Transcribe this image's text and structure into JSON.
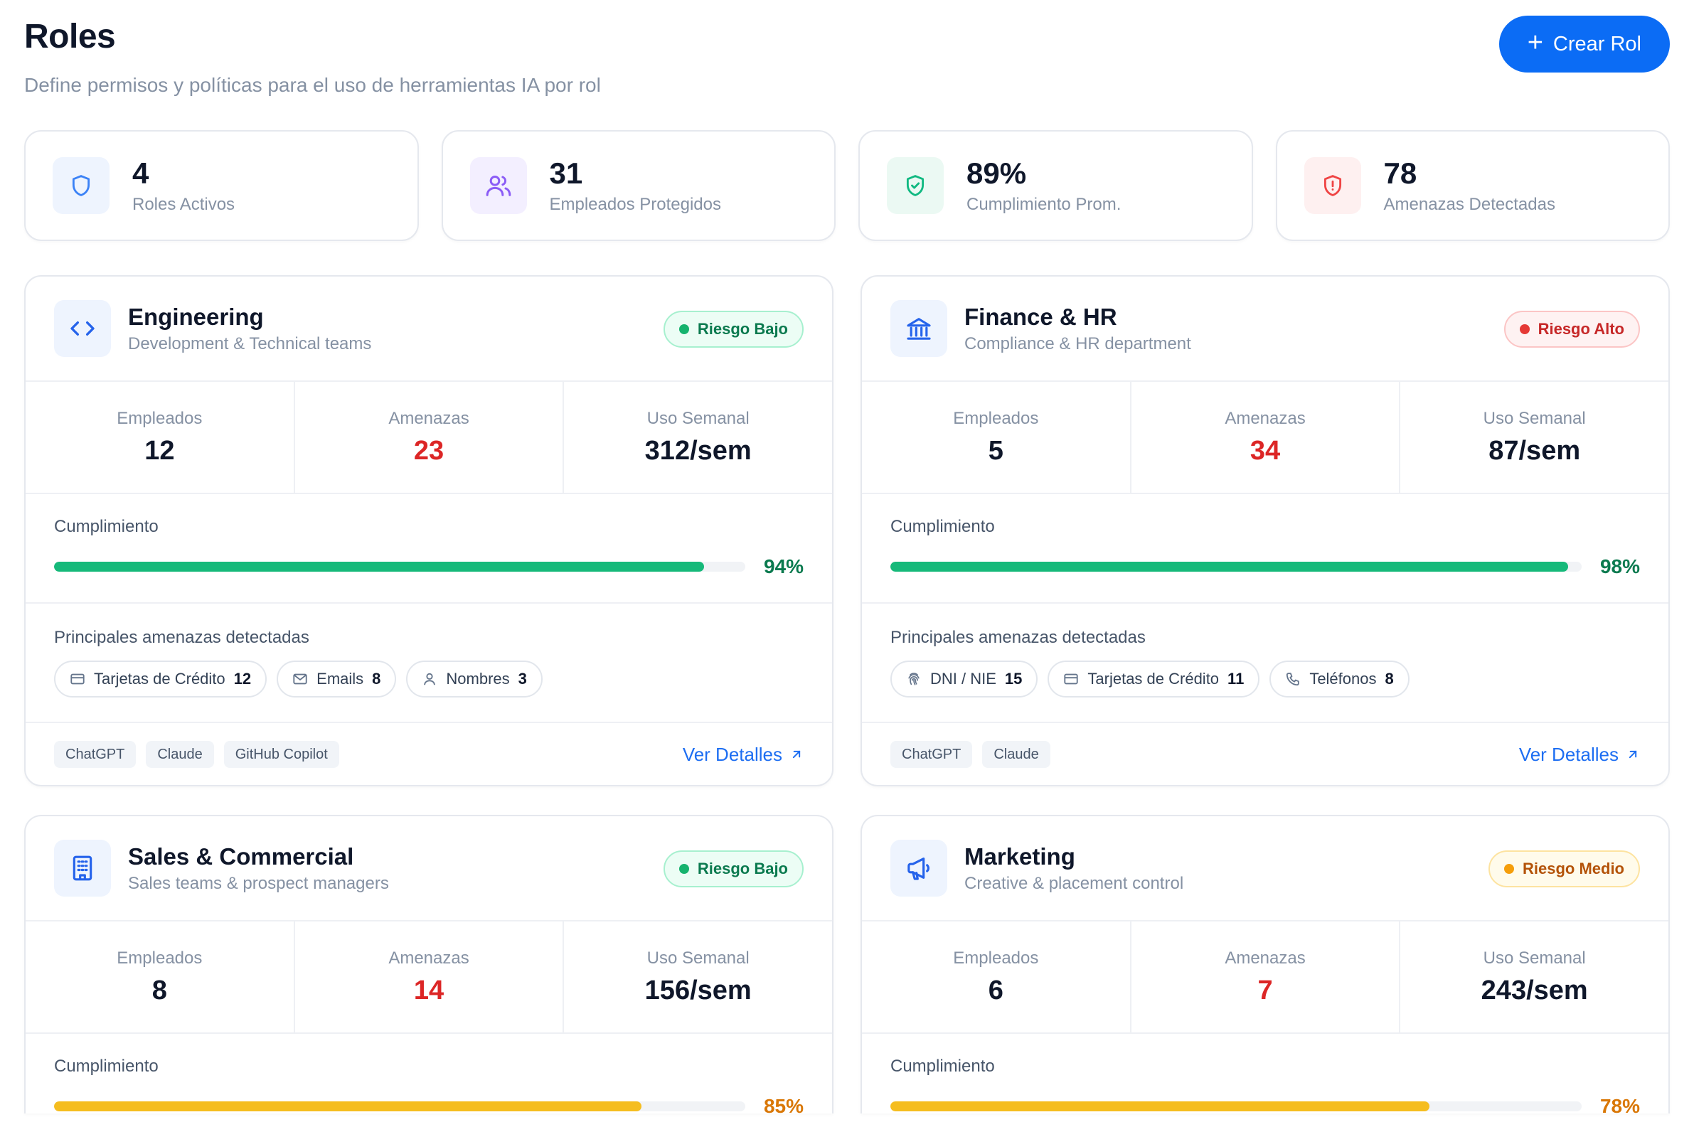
{
  "header": {
    "title": "Roles",
    "subtitle": "Define permisos y políticas para el uso de herramientas IA por rol",
    "create_button": "Crear Rol"
  },
  "stats": [
    {
      "value": "4",
      "label": "Roles Activos",
      "icon": "shield-icon",
      "color": "#3b82f6"
    },
    {
      "value": "31",
      "label": "Empleados Protegidos",
      "icon": "users-icon",
      "color": "#8b5cf6"
    },
    {
      "value": "89%",
      "label": "Cumplimiento Prom.",
      "icon": "shield-check-icon",
      "color": "#10b981"
    },
    {
      "value": "78",
      "label": "Amenazas Detectadas",
      "icon": "shield-alert-icon",
      "color": "#ef4444"
    }
  ],
  "labels": {
    "employees": "Empleados",
    "threats": "Amenazas",
    "weekly_usage": "Uso Semanal",
    "compliance": "Cumplimiento",
    "top_threats": "Principales amenazas detectadas",
    "details": "Ver Detalles"
  },
  "roles": [
    {
      "name": "Engineering",
      "description": "Development & Technical teams",
      "icon": "code-icon",
      "risk": "Riesgo Bajo",
      "employees": "12",
      "threats": "23",
      "weekly_usage": "312/sem",
      "compliance_pct": "94%",
      "compliance_value": 94,
      "bar_color": "#16b97a",
      "pct_color": "#0b7a4f",
      "top_threats": [
        {
          "label": "Tarjetas de Crédito",
          "count": "12",
          "icon": "credit-card-icon"
        },
        {
          "label": "Emails",
          "count": "8",
          "icon": "mail-icon"
        },
        {
          "label": "Nombres",
          "count": "3",
          "icon": "user-icon"
        }
      ],
      "tools": [
        "ChatGPT",
        "Claude",
        "GitHub Copilot"
      ]
    },
    {
      "name": "Finance & HR",
      "description": "Compliance & HR department",
      "icon": "bank-icon",
      "risk": "Riesgo Alto",
      "employees": "5",
      "threats": "34",
      "weekly_usage": "87/sem",
      "compliance_pct": "98%",
      "compliance_value": 98,
      "bar_color": "#16b97a",
      "pct_color": "#0b7a4f",
      "top_threats": [
        {
          "label": "DNI / NIE",
          "count": "15",
          "icon": "fingerprint-icon"
        },
        {
          "label": "Tarjetas de Crédito",
          "count": "11",
          "icon": "credit-card-icon"
        },
        {
          "label": "Teléfonos",
          "count": "8",
          "icon": "phone-icon"
        }
      ],
      "tools": [
        "ChatGPT",
        "Claude"
      ]
    },
    {
      "name": "Sales & Commercial",
      "description": "Sales teams & prospect managers",
      "icon": "building-icon",
      "risk": "Riesgo Bajo",
      "employees": "8",
      "threats": "14",
      "weekly_usage": "156/sem",
      "compliance_pct": "85%",
      "compliance_value": 85,
      "bar_color": "#f5bd1f",
      "pct_color": "#d97706"
    },
    {
      "name": "Marketing",
      "description": "Creative & placement control",
      "icon": "megaphone-icon",
      "risk": "Riesgo Medio",
      "employees": "6",
      "threats": "7",
      "weekly_usage": "243/sem",
      "compliance_pct": "78%",
      "compliance_value": 78,
      "bar_color": "#f5bd1f",
      "pct_color": "#d97706"
    }
  ]
}
